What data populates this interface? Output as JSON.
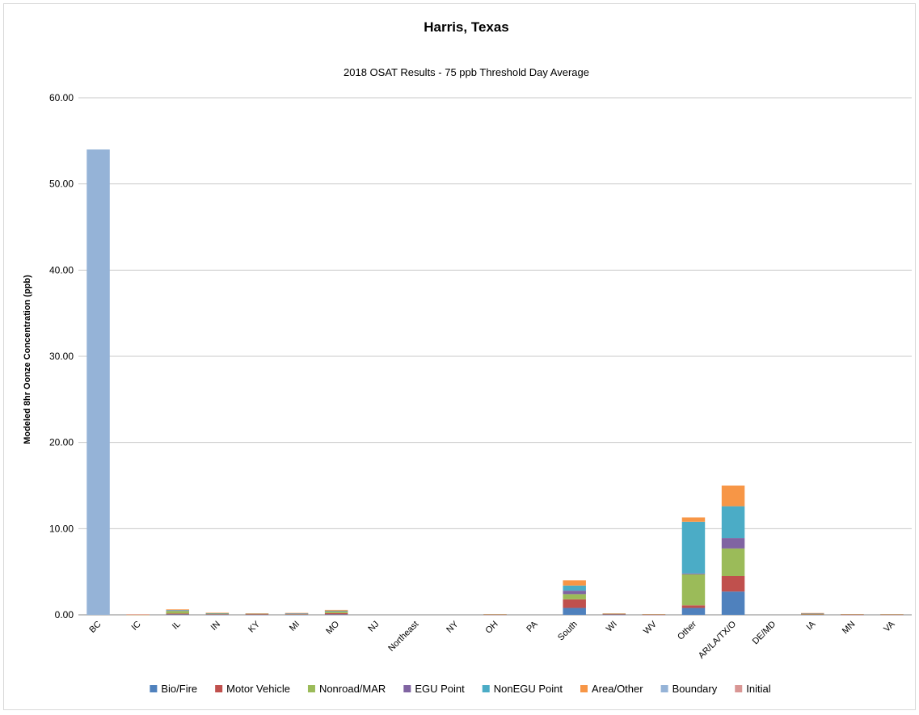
{
  "chart_data": {
    "type": "bar",
    "stacked": true,
    "title": "Harris, Texas",
    "subtitle": "2018 OSAT Results - 75 ppb Threshold Day Average",
    "xlabel": "",
    "ylabel": "Modeled 8hr Oonze Concentration (ppb)",
    "ylim": [
      0,
      60
    ],
    "yticks": [
      0,
      10,
      20,
      30,
      40,
      50,
      60
    ],
    "ytick_labels": [
      "0.00",
      "10.00",
      "20.00",
      "30.00",
      "40.00",
      "50.00",
      "60.00"
    ],
    "grid": true,
    "legend_position": "bottom",
    "categories": [
      "BC",
      "IC",
      "IL",
      "IN",
      "KY",
      "MI",
      "MO",
      "NJ",
      "Northeast",
      "NY",
      "OH",
      "PA",
      "South",
      "WI",
      "WV",
      "Other",
      "AR/LA/TX/O",
      "DE/MD",
      "IA",
      "MN",
      "VA"
    ],
    "series": [
      {
        "name": "Bio/Fire",
        "color": "#4f81bd",
        "values": [
          0,
          0,
          0.05,
          0.03,
          0.02,
          0.02,
          0.05,
          0,
          0,
          0,
          0.01,
          0,
          0.8,
          0.02,
          0.01,
          0.8,
          2.7,
          0,
          0.02,
          0.01,
          0.01
        ]
      },
      {
        "name": "Motor Vehicle",
        "color": "#c0504d",
        "values": [
          0,
          0.02,
          0.1,
          0.05,
          0.03,
          0.05,
          0.15,
          0,
          0,
          0,
          0.02,
          0,
          1.0,
          0.03,
          0.02,
          0.3,
          1.8,
          0,
          0.03,
          0.02,
          0.02
        ]
      },
      {
        "name": "Nonroad/MAR",
        "color": "#9bbb59",
        "values": [
          0,
          0.01,
          0.3,
          0.08,
          0.06,
          0.06,
          0.2,
          0,
          0,
          0,
          0.02,
          0,
          0.6,
          0.05,
          0.03,
          3.6,
          3.2,
          0,
          0.08,
          0.03,
          0.02
        ]
      },
      {
        "name": "EGU Point",
        "color": "#8064a2",
        "values": [
          0,
          0,
          0.06,
          0.03,
          0.02,
          0.02,
          0.05,
          0,
          0,
          0,
          0.01,
          0,
          0.4,
          0.02,
          0.01,
          0.1,
          1.2,
          0,
          0.03,
          0.01,
          0.01
        ]
      },
      {
        "name": "NonEGU Point",
        "color": "#4bacc6",
        "values": [
          0,
          0,
          0.04,
          0.02,
          0.02,
          0.02,
          0.04,
          0,
          0,
          0,
          0.01,
          0,
          0.6,
          0.02,
          0.01,
          6.0,
          3.7,
          0,
          0.02,
          0.01,
          0.01
        ]
      },
      {
        "name": "Area/Other",
        "color": "#f79646",
        "values": [
          0,
          0.02,
          0.08,
          0.03,
          0.02,
          0.05,
          0.08,
          0,
          0,
          0,
          0.01,
          0,
          0.6,
          0.03,
          0.01,
          0.5,
          2.4,
          0,
          0.03,
          0.01,
          0.01
        ]
      },
      {
        "name": "Boundary",
        "color": "#95b3d7",
        "values": [
          54.0,
          0,
          0,
          0,
          0,
          0,
          0,
          0,
          0,
          0,
          0,
          0,
          0,
          0,
          0,
          0,
          0,
          0,
          0,
          0,
          0
        ]
      },
      {
        "name": "Initial",
        "color": "#d99694",
        "values": [
          0,
          0.02,
          0,
          0,
          0,
          0,
          0,
          0,
          0,
          0,
          0,
          0,
          0,
          0,
          0,
          0,
          0,
          0,
          0,
          0,
          0
        ]
      }
    ]
  }
}
